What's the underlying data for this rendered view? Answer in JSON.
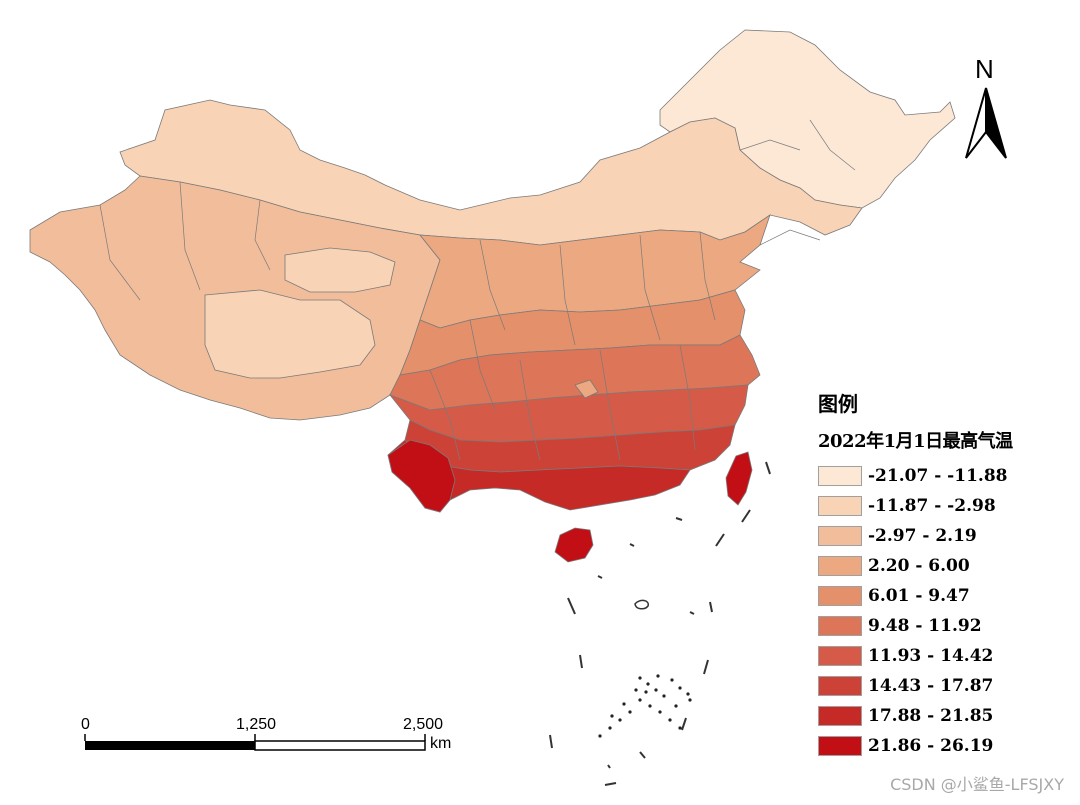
{
  "legend": {
    "title": "图例",
    "subtitle": "2022年1月1日最高气温",
    "classes": [
      {
        "label": "-21.07 - -11.88",
        "color": "#fde8d6"
      },
      {
        "label": "-11.87 - -2.98",
        "color": "#f8d3b6"
      },
      {
        "label": "-2.97 - 2.19",
        "color": "#f2bd9a"
      },
      {
        "label": "2.20 - 6.00",
        "color": "#eca880"
      },
      {
        "label": "6.01 - 9.47",
        "color": "#e4906a"
      },
      {
        "label": "9.48 - 11.92",
        "color": "#dd7558"
      },
      {
        "label": "11.93 - 14.42",
        "color": "#d55b48"
      },
      {
        "label": "14.43 - 17.87",
        "color": "#cd4237"
      },
      {
        "label": "17.88 - 21.85",
        "color": "#c52a26"
      },
      {
        "label": "21.86 - 26.19",
        "color": "#c10f15"
      }
    ]
  },
  "north_arrow": {
    "label": "N"
  },
  "scale_bar": {
    "labels": [
      "0",
      "1,250",
      "2,500"
    ],
    "unit": "km"
  },
  "watermark": "CSDN @小鲨鱼-LFSJXY",
  "colors": {
    "border": "#7a7a7a",
    "text": "#000000"
  }
}
